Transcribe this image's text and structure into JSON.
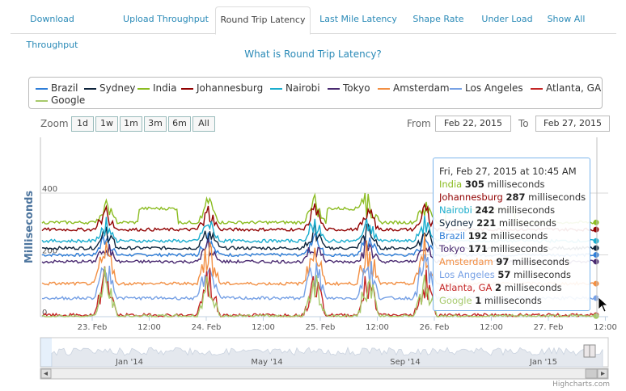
{
  "tabs": [
    {
      "label": "Download Throughput",
      "active": false
    },
    {
      "label": "Upload Throughput",
      "active": false
    },
    {
      "label": "Round Trip Latency",
      "active": true
    },
    {
      "label": "Last Mile Latency",
      "active": false
    },
    {
      "label": "Shape Rate",
      "active": false
    },
    {
      "label": "Under Load",
      "active": false
    },
    {
      "label": "Show All",
      "active": false
    }
  ],
  "what_link": "What is Round Trip Latency?",
  "range_selector": {
    "zoom_label": "Zoom",
    "buttons": [
      "1d",
      "1w",
      "1m",
      "3m",
      "6m",
      "All"
    ],
    "from_label": "From",
    "from_value": "Feb 22, 2015",
    "to_label": "To",
    "to_value": "Feb 27, 2015"
  },
  "tooltip": {
    "header": "Fri, Feb 27, 2015 at 10:45 AM",
    "unit": "milliseconds",
    "rows": [
      {
        "name": "India",
        "value": "305"
      },
      {
        "name": "Johannesburg",
        "value": "287"
      },
      {
        "name": "Nairobi",
        "value": "242"
      },
      {
        "name": "Sydney",
        "value": "221"
      },
      {
        "name": "Brazil",
        "value": "192"
      },
      {
        "name": "Tokyo",
        "value": "171"
      },
      {
        "name": "Amsterdam",
        "value": "97"
      },
      {
        "name": "Los Angeles",
        "value": "57"
      },
      {
        "name": "Atlanta, GA",
        "value": "2"
      },
      {
        "name": "Google",
        "value": "1"
      }
    ]
  },
  "navigator": {
    "labels": [
      "Jan '14",
      "May '14",
      "Sep '14",
      "Jan '15"
    ]
  },
  "credits": "Highcharts.com",
  "chart_data": {
    "type": "line",
    "ylabel": "Milliseconds",
    "y_ticks": [
      0,
      200,
      400
    ],
    "ylim": [
      0,
      450
    ],
    "x_ticks": [
      "23. Feb",
      "12:00",
      "24. Feb",
      "12:00",
      "25. Feb",
      "12:00",
      "26. Feb",
      "12:00",
      "27. Feb",
      "12:00"
    ],
    "x_range_days": [
      0,
      5.05
    ],
    "grid": true,
    "legend_position": "top",
    "series": [
      {
        "name": "Brazil",
        "color": "#2f7ed8",
        "base": 200
      },
      {
        "name": "Sydney",
        "color": "#0d233a",
        "base": 222
      },
      {
        "name": "India",
        "color": "#8bbc21",
        "base": 305
      },
      {
        "name": "Johannesburg",
        "color": "#910000",
        "base": 282
      },
      {
        "name": "Nairobi",
        "color": "#1aadce",
        "base": 245
      },
      {
        "name": "Tokyo",
        "color": "#492970",
        "base": 178
      },
      {
        "name": "Amsterdam",
        "color": "#f28f43",
        "base": 107
      },
      {
        "name": "Los Angeles",
        "color": "#77a1e5",
        "base": 60
      },
      {
        "name": "Atlanta, GA",
        "color": "#c42525",
        "base": 5
      },
      {
        "name": "Google",
        "color": "#a6c96a",
        "base": 2
      }
    ],
    "spike_days": [
      0.12,
      1.02,
      1.95,
      2.42,
      2.92
    ]
  }
}
